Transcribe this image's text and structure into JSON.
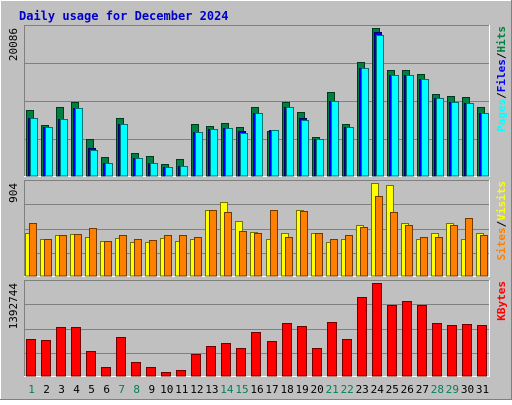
{
  "title": "Daily usage for December 2024",
  "colors": {
    "background": "#c0c0c0",
    "plot": "#c0c0c0",
    "gridline": "#808080",
    "title": "#0000cc",
    "hits": "#008040",
    "files": "#0000ff",
    "pages": "#00ffff",
    "visits": "#ffff00",
    "sites": "#ff8000",
    "kbytes": "#ff0000",
    "weekday_label": "#000000",
    "weekend_label": "#00805c"
  },
  "chart_data": [
    {
      "type": "bar",
      "panel": "hits-files-pages",
      "axis_max_label": "20086",
      "ylim": [
        0,
        20086
      ],
      "grid": true,
      "legend": "right side, vertical",
      "legend_items": [
        "Pages",
        "/",
        "Files",
        "/",
        "Hits"
      ],
      "categories": [
        "1",
        "2",
        "3",
        "4",
        "5",
        "6",
        "7",
        "8",
        "9",
        "10",
        "11",
        "12",
        "13",
        "14",
        "15",
        "16",
        "17",
        "18",
        "19",
        "20",
        "21",
        "22",
        "23",
        "24",
        "25",
        "26",
        "27",
        "28",
        "29",
        "30",
        "31"
      ],
      "series": [
        {
          "name": "Hits",
          "values": [
            9000,
            6900,
            9300,
            10000,
            5000,
            2600,
            7900,
            3100,
            2700,
            1600,
            2300,
            7000,
            6800,
            7200,
            6700,
            9300,
            6100,
            10100,
            8700,
            5300,
            11400,
            7100,
            15500,
            20086,
            14400,
            14400,
            13800,
            11100,
            10900,
            10700,
            9300
          ]
        },
        {
          "name": "Files",
          "values": [
            7900,
            6600,
            7800,
            9200,
            3800,
            1700,
            7100,
            2400,
            1700,
            1200,
            1300,
            6000,
            6400,
            6500,
            6100,
            8600,
            6300,
            9400,
            7900,
            5000,
            10200,
            6600,
            14700,
            19500,
            13700,
            13700,
            13100,
            10600,
            10100,
            9900,
            8600
          ]
        },
        {
          "name": "Pages",
          "values": [
            7900,
            6600,
            7800,
            9200,
            3500,
            1700,
            7000,
            2400,
            1700,
            1200,
            1300,
            6000,
            6400,
            6500,
            5900,
            8600,
            6300,
            9400,
            7600,
            5000,
            10200,
            6600,
            14700,
            19200,
            13700,
            13700,
            13100,
            10600,
            10100,
            9900,
            8600
          ]
        }
      ]
    },
    {
      "type": "bar",
      "panel": "visits-sites",
      "axis_max_label": "904",
      "ylim": [
        0,
        904
      ],
      "grid": true,
      "legend": "right side, vertical",
      "legend_items": [
        "Sites",
        "/",
        "Visits"
      ],
      "categories": [
        "1",
        "2",
        "3",
        "4",
        "5",
        "6",
        "7",
        "8",
        "9",
        "10",
        "11",
        "12",
        "13",
        "14",
        "15",
        "16",
        "17",
        "18",
        "19",
        "20",
        "21",
        "22",
        "23",
        "24",
        "25",
        "26",
        "27",
        "28",
        "29",
        "30",
        "31"
      ],
      "series": [
        {
          "name": "Visits",
          "values": [
            420,
            360,
            400,
            410,
            380,
            345,
            370,
            335,
            330,
            370,
            345,
            360,
            640,
            715,
            530,
            430,
            360,
            420,
            645,
            420,
            330,
            360,
            495,
            904,
            880,
            520,
            360,
            420,
            520,
            360,
            420
          ]
        },
        {
          "name": "Sites",
          "values": [
            520,
            360,
            400,
            410,
            470,
            345,
            400,
            360,
            350,
            400,
            400,
            380,
            640,
            620,
            440,
            420,
            640,
            380,
            630,
            420,
            360,
            400,
            480,
            780,
            620,
            500,
            380,
            380,
            500,
            560,
            400
          ]
        }
      ]
    },
    {
      "type": "bar",
      "panel": "kbytes",
      "axis_max_label": "1392744",
      "ylim": [
        0,
        1392744
      ],
      "grid": true,
      "legend": "right side, vertical",
      "legend_items": [
        "KBytes"
      ],
      "categories": [
        "1",
        "2",
        "3",
        "4",
        "5",
        "6",
        "7",
        "8",
        "9",
        "10",
        "11",
        "12",
        "13",
        "14",
        "15",
        "16",
        "17",
        "18",
        "19",
        "20",
        "21",
        "22",
        "23",
        "24",
        "25",
        "26",
        "27",
        "28",
        "29",
        "30",
        "31"
      ],
      "series": [
        {
          "name": "KBytes",
          "values": [
            560000,
            540000,
            740000,
            740000,
            380000,
            130000,
            580000,
            210000,
            130000,
            60000,
            90000,
            330000,
            450000,
            500000,
            420000,
            660000,
            530000,
            790000,
            750000,
            420000,
            810000,
            550000,
            1180000,
            1392744,
            1060000,
            1130000,
            1060000,
            800000,
            770000,
            780000,
            770000
          ]
        }
      ]
    }
  ],
  "day_labels": [
    {
      "text": "1",
      "weekend": true
    },
    {
      "text": "2",
      "weekend": false
    },
    {
      "text": "3",
      "weekend": false
    },
    {
      "text": "4",
      "weekend": false
    },
    {
      "text": "5",
      "weekend": false
    },
    {
      "text": "6",
      "weekend": false
    },
    {
      "text": "7",
      "weekend": true
    },
    {
      "text": "8",
      "weekend": true
    },
    {
      "text": "9",
      "weekend": false
    },
    {
      "text": "10",
      "weekend": false
    },
    {
      "text": "11",
      "weekend": false
    },
    {
      "text": "12",
      "weekend": false
    },
    {
      "text": "13",
      "weekend": false
    },
    {
      "text": "14",
      "weekend": true
    },
    {
      "text": "15",
      "weekend": true
    },
    {
      "text": "16",
      "weekend": false
    },
    {
      "text": "17",
      "weekend": false
    },
    {
      "text": "18",
      "weekend": false
    },
    {
      "text": "19",
      "weekend": false
    },
    {
      "text": "20",
      "weekend": false
    },
    {
      "text": "21",
      "weekend": true
    },
    {
      "text": "22",
      "weekend": true
    },
    {
      "text": "23",
      "weekend": false
    },
    {
      "text": "24",
      "weekend": false
    },
    {
      "text": "25",
      "weekend": false
    },
    {
      "text": "26",
      "weekend": false
    },
    {
      "text": "27",
      "weekend": false
    },
    {
      "text": "28",
      "weekend": true
    },
    {
      "text": "29",
      "weekend": true
    },
    {
      "text": "30",
      "weekend": false
    },
    {
      "text": "31",
      "weekend": false
    }
  ]
}
